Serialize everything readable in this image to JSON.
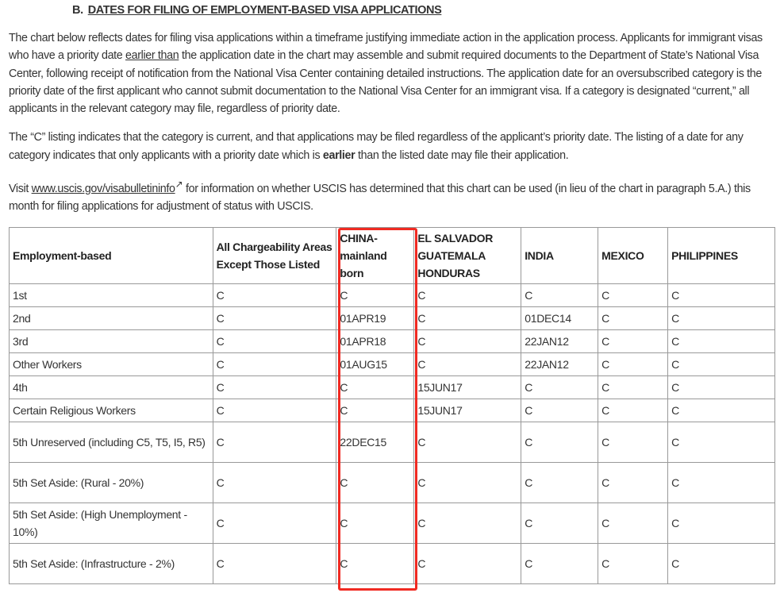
{
  "section": {
    "letter": "B.",
    "title": "DATES FOR FILING OF EMPLOYMENT-BASED VISA APPLICATIONS"
  },
  "para1": {
    "a": "The chart below reflects dates for filing visa applications within a timeframe justifying immediate action in the application process. Applicants for immigrant visas who have a priority date ",
    "u": "earlier than",
    "b": " the application date in the chart may assemble and submit required documents to the Department of State’s National Visa Center, following receipt of notification from the National Visa Center containing detailed instructions. The application date for an oversubscribed category is the priority date of the first applicant who cannot submit documentation to the National Visa Center for an immigrant visa. If a category is designated “current,” all applicants in the relevant category may file, regardless of priority date."
  },
  "para2": {
    "a": "The “C” listing indicates that the category is current, and that applications may be filed regardless of the applicant’s priority date. The listing of a date for any category indicates that only applicants with a priority date which is ",
    "bold": "earlier",
    "b": " than the listed date may file their application."
  },
  "para3": {
    "a": "Visit ",
    "link": "www.uscis.gov/visabulletininfo",
    "b": " for information on whether USCIS has determined that this chart can be used (in lieu of the chart in paragraph 5.A.) this month for filing applications for adjustment of status with USCIS."
  },
  "table": {
    "headers": [
      "Employment-based",
      "All Chargeability Areas Except Those Listed",
      "CHINA-mainland born",
      "EL SALVADOR GUATEMALA HONDURAS",
      "INDIA",
      "MEXICO",
      "PHILIPPINES"
    ],
    "rows": [
      [
        "1st",
        "C",
        "C",
        "C",
        "C",
        "C",
        "C"
      ],
      [
        "2nd",
        "C",
        "01APR19",
        "C",
        "01DEC14",
        "C",
        "C"
      ],
      [
        "3rd",
        "C",
        "01APR18",
        "C",
        "22JAN12",
        "C",
        "C"
      ],
      [
        "Other Workers",
        "C",
        "01AUG15",
        "C",
        "22JAN12",
        "C",
        "C"
      ],
      [
        "4th",
        "C",
        "C",
        "15JUN17",
        "C",
        "C",
        "C"
      ],
      [
        "Certain Religious Workers",
        "C",
        "C",
        "15JUN17",
        "C",
        "C",
        "C"
      ],
      [
        "5th Unreserved (including C5, T5, I5, R5)",
        "C",
        "22DEC15",
        "C",
        "C",
        "C",
        "C"
      ],
      [
        "5th Set Aside: (Rural - 20%)",
        "C",
        "C",
        "C",
        "C",
        "C",
        "C"
      ],
      [
        "5th Set Aside: (High Unemployment - 10%)",
        "C",
        "C",
        "C",
        "C",
        "C",
        "C"
      ],
      [
        "5th Set Aside: (Infrastructure - 2%)",
        "C",
        "C",
        "C",
        "C",
        "C",
        "C"
      ]
    ]
  },
  "highlight_color": "#f02a22"
}
